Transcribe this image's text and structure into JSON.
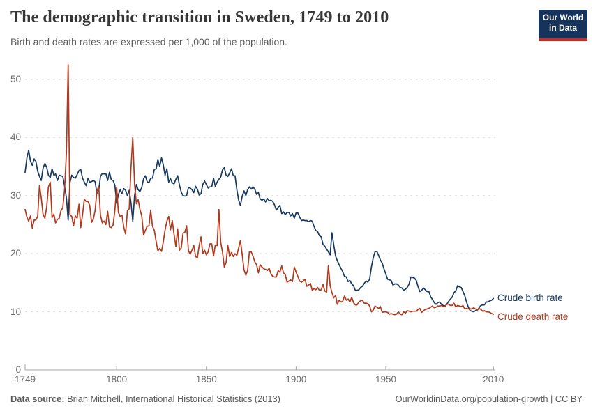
{
  "header": {
    "title": "The demographic transition in Sweden, 1749 to 2010",
    "subtitle": "Birth and death rates are expressed per 1,000 of the population."
  },
  "logo": {
    "line1": "Our World",
    "line2": "in Data",
    "bg_color": "#16335b",
    "accent_color": "#cd2a24"
  },
  "footer": {
    "source_label": "Data source:",
    "source_text": " Brian Mitchell, International Historical Statistics (2013)",
    "right_text": "OurWorldinData.org/population-growth | CC BY"
  },
  "chart_data": {
    "type": "line",
    "title": "The demographic transition in Sweden, 1749 to 2010",
    "xlabel": "",
    "ylabel": "",
    "x_start": 1749,
    "x_end": 2010,
    "x_ticks": [
      1749,
      1800,
      1850,
      1900,
      1950,
      2010
    ],
    "y_ticks": [
      0,
      10,
      20,
      30,
      40,
      50
    ],
    "ylim": [
      0,
      53
    ],
    "grid": "horizontal-dashed",
    "legend_position": "right-end-labels",
    "axis_color": "#a5a5a5",
    "grid_color": "#d9d9d9",
    "series": [
      {
        "name": "Crude birth rate",
        "color": "#16395f",
        "values": [
          34.0,
          36.5,
          37.8,
          35.9,
          35.2,
          36.3,
          35.9,
          34.2,
          33.3,
          32.6,
          34.7,
          35.5,
          34.9,
          33.5,
          33.1,
          34.6,
          33.5,
          33.7,
          32.6,
          33.5,
          33.4,
          33.3,
          31.6,
          29.6,
          25.8,
          32.3,
          33.5,
          33.1,
          33.0,
          33.6,
          34.3,
          34.5,
          33.0,
          32.3,
          31.7,
          32.9,
          32.3,
          32.4,
          32.6,
          32.4,
          30.4,
          30.8,
          33.3,
          33.8,
          33.7,
          33.8,
          32.6,
          34.0,
          32.7,
          32.6,
          31.8,
          28.7,
          30.2,
          31.0,
          30.4,
          31.2,
          30.9,
          30.0,
          30.9,
          28.8,
          25.6,
          30.0,
          31.9,
          31.0,
          30.7,
          31.4,
          32.9,
          33.4,
          32.4,
          32.2,
          33.0,
          33.0,
          34.5,
          34.6,
          36.2,
          35.0,
          36.5,
          35.3,
          33.5,
          34.6,
          32.3,
          32.9,
          32.2,
          32.0,
          32.8,
          33.4,
          31.8,
          30.6,
          30.0,
          29.9,
          30.0,
          31.4,
          31.3,
          31.0,
          30.5,
          31.6,
          31.1,
          30.1,
          30.3,
          31.9,
          32.5,
          31.9,
          31.3,
          31.5,
          31.5,
          33.0,
          31.6,
          32.3,
          32.8,
          33.2,
          34.4,
          34.8,
          33.5,
          33.3,
          33.9,
          34.6,
          33.4,
          33.4,
          31.0,
          29.2,
          28.3,
          29.9,
          30.8,
          30.0,
          31.0,
          31.5,
          31.1,
          31.5,
          31.1,
          30.2,
          30.5,
          29.4,
          29.2,
          29.4,
          28.9,
          29.5,
          29.1,
          29.2,
          29.0,
          28.4,
          27.5,
          28.0,
          28.3,
          26.9,
          27.2,
          26.7,
          27.1,
          27.1,
          26.5,
          26.9,
          26.1,
          27.0,
          27.0,
          26.3,
          25.7,
          25.8,
          25.7,
          25.7,
          25.5,
          25.7,
          25.6,
          24.7,
          24.0,
          23.8,
          23.1,
          22.9,
          21.6,
          21.3,
          20.8,
          20.3,
          19.8,
          23.6,
          21.5,
          19.6,
          18.8,
          18.1,
          17.5,
          16.9,
          16.1,
          16.0,
          15.2,
          15.4,
          14.8,
          14.5,
          13.7,
          13.7,
          13.8,
          14.2,
          14.4,
          14.9,
          15.3,
          15.1,
          15.6,
          17.7,
          19.3,
          20.3,
          20.4,
          19.7,
          18.9,
          18.4,
          17.4,
          16.5,
          15.6,
          15.5,
          15.4,
          14.6,
          14.8,
          14.8,
          14.6,
          14.2,
          14.1,
          13.7,
          13.9,
          14.2,
          14.8,
          16.0,
          15.9,
          15.8,
          15.4,
          14.3,
          13.5,
          13.7,
          14.1,
          13.8,
          13.5,
          13.5,
          12.6,
          12.1,
          11.6,
          11.3,
          11.6,
          11.7,
          11.3,
          11.1,
          11.0,
          11.3,
          11.8,
          12.2,
          12.5,
          13.3,
          13.6,
          14.5,
          14.3,
          14.2,
          13.5,
          12.8,
          11.7,
          10.8,
          10.2,
          10.1,
          10.0,
          10.2,
          10.3,
          10.7,
          11.1,
          11.2,
          11.2,
          11.7,
          11.7,
          11.9,
          12.0,
          12.3
        ]
      },
      {
        "name": "Crude death rate",
        "color": "#b13a1e",
        "values": [
          27.6,
          26.3,
          25.6,
          26.5,
          24.4,
          25.8,
          25.8,
          26.4,
          31.8,
          29.6,
          26.8,
          26.1,
          28.0,
          31.5,
          32.3,
          26.2,
          26.8,
          25.3,
          25.9,
          26.1,
          27.4,
          27.9,
          31.1,
          37.4,
          52.5,
          26.7,
          26.4,
          24.8,
          26.5,
          26.1,
          28.5,
          24.5,
          26.7,
          29.4,
          29.0,
          29.0,
          28.3,
          25.4,
          25.9,
          27.4,
          30.8,
          31.6,
          26.6,
          25.3,
          25.6,
          25.0,
          27.3,
          24.6,
          24.5,
          24.9,
          27.4,
          31.4,
          27.1,
          26.4,
          26.6,
          24.5,
          23.4,
          27.4,
          27.7,
          34.7,
          40.0,
          31.9,
          28.6,
          29.3,
          27.6,
          26.5,
          23.2,
          24.0,
          24.7,
          24.8,
          27.5,
          24.7,
          24.0,
          22.1,
          20.5,
          20.9,
          20.4,
          22.0,
          24.1,
          25.6,
          26.4,
          24.1,
          25.7,
          23.3,
          21.2,
          24.3,
          20.6,
          21.0,
          23.5,
          23.7,
          24.8,
          20.5,
          19.9,
          20.6,
          21.4,
          19.5,
          19.3,
          21.4,
          22.9,
          20.0,
          20.6,
          19.8,
          20.3,
          21.7,
          21.7,
          19.6,
          21.5,
          21.4,
          27.6,
          21.9,
          20.3,
          17.7,
          18.5,
          21.4,
          19.5,
          20.2,
          19.5,
          20.0,
          19.7,
          21.0,
          22.3,
          19.8,
          17.2,
          16.3,
          17.1,
          20.3,
          20.3,
          19.6,
          18.6,
          18.1,
          16.7,
          18.1,
          17.7,
          17.4,
          17.3,
          17.1,
          17.5,
          16.5,
          16.1,
          16.0,
          16.0,
          17.1,
          16.8,
          17.9,
          16.7,
          16.4,
          15.1,
          15.3,
          15.5,
          15.2,
          17.7,
          16.8,
          16.1,
          15.3,
          15.1,
          15.3,
          15.6,
          14.4,
          14.6,
          14.9,
          13.7,
          14.0,
          13.8,
          14.2,
          13.7,
          13.8,
          14.7,
          13.6,
          13.4,
          18.0,
          14.5,
          13.3,
          12.4,
          12.8,
          11.3,
          12.0,
          11.7,
          11.8,
          12.7,
          12.0,
          12.2,
          11.7,
          12.5,
          11.6,
          11.2,
          11.2,
          11.7,
          11.9,
          12.0,
          11.5,
          11.5,
          11.4,
          11.0,
          10.0,
          10.3,
          11.0,
          10.8,
          10.6,
          10.9,
          9.9,
          10.0,
          10.0,
          9.9,
          9.6,
          9.7,
          9.6,
          9.5,
          9.6,
          10.0,
          9.6,
          9.5,
          10.0,
          9.8,
          10.2,
          10.1,
          10.0,
          10.1,
          10.1,
          10.1,
          10.4,
          10.6,
          9.9,
          10.2,
          10.4,
          10.5,
          10.6,
          10.8,
          11.0,
          10.7,
          10.8,
          11.0,
          11.0,
          11.1,
          10.9,
          10.9,
          11.3,
          11.3,
          11.1,
          11.1,
          11.5,
          10.8,
          11.1,
          11.0,
          10.9,
          11.1,
          10.5,
          10.6,
          10.5,
          10.5,
          10.5,
          10.7,
          10.5,
          10.3,
          10.6,
          10.4,
          10.1,
          10.2,
          10.0,
          10.0,
          9.9,
          9.7,
          9.6
        ]
      }
    ]
  }
}
